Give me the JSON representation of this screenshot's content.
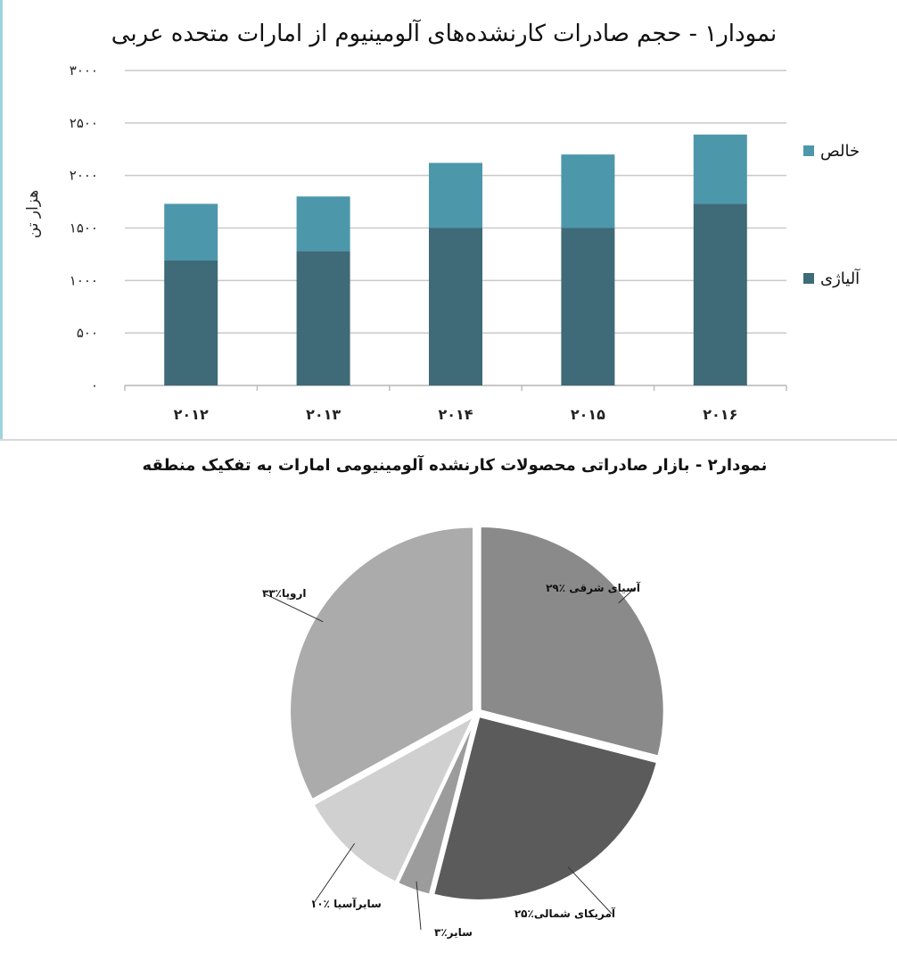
{
  "chart_data": [
    {
      "type": "bar",
      "stacked": true,
      "title": "نمودار۱ - حجم صادرات کارنشده‌های آلومینیوم از امارات متحده عربی",
      "ylabel": "هزار تن",
      "xlabel": "",
      "categories": [
        "۲۰۱۲",
        "۲۰۱۳",
        "۲۰۱۴",
        "۲۰۱۵",
        "۲۰۱۶"
      ],
      "ylim": [
        0,
        3000
      ],
      "yticks": [
        0,
        500,
        1000,
        1500,
        2000,
        2500,
        3000
      ],
      "ytick_labels": [
        "۰",
        "۵۰۰",
        "۱۰۰۰",
        "۱۵۰۰",
        "۲۰۰۰",
        "۲۵۰۰",
        "۳۰۰۰"
      ],
      "grid": true,
      "legend_position": "right",
      "series": [
        {
          "name": "آلیاژی",
          "color": "#3f6a78",
          "values": [
            1190,
            1280,
            1500,
            1500,
            1730
          ]
        },
        {
          "name": "خالص",
          "color": "#4d97ab",
          "values": [
            540,
            520,
            620,
            700,
            660
          ]
        }
      ]
    },
    {
      "type": "pie",
      "title": "نمودار۲ - بازار صادراتی محصولات کارنشده آلومینیومی امارات به تفکیک منطقه",
      "slices": [
        {
          "label": "آسیای شرقی ٪۲۹",
          "value": 29,
          "color": "#8a8a8a"
        },
        {
          "label": "آمریکای شمالی٪۲۵",
          "value": 25,
          "color": "#5b5b5b"
        },
        {
          "label": "سایر٪۳",
          "value": 3,
          "color": "#9c9c9c"
        },
        {
          "label": "سایرآسیا ٪۱۰",
          "value": 10,
          "color": "#d0d0d0"
        },
        {
          "label": "اروپا٪۳۳",
          "value": 33,
          "color": "#ababab"
        }
      ]
    }
  ]
}
